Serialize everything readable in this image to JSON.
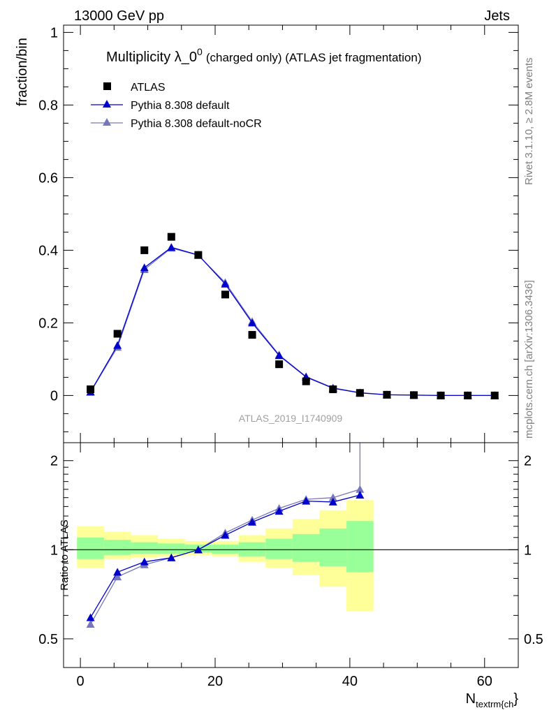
{
  "header": {
    "left": "13000 GeV pp",
    "right": "Jets"
  },
  "side_labels": {
    "rivet": "Rivet 3.1.10, ≥ 2.8M events",
    "mcplots": "mcplots.cern.ch [arXiv:1306.3436]"
  },
  "watermark": "ATLAS_2019_I1740909",
  "chart_data": [
    {
      "type": "scatter",
      "title_main": "Multiplicity λ_0",
      "title_sup": "0",
      "title_rest": "(charged only) (ATLAS jet fragmentation)",
      "ylabel": "fraction/bin",
      "xlim": [
        -2.5,
        65
      ],
      "ylim": [
        -0.13,
        1.02
      ],
      "yticks": [
        0,
        0.2,
        0.4,
        0.6,
        0.8,
        1
      ],
      "ytick_labels": [
        "0",
        "0.2",
        "0.4",
        "0.6",
        "0.8",
        "1"
      ],
      "x": [
        1.5,
        5.5,
        9.5,
        13.5,
        17.5,
        21.5,
        25.5,
        29.5,
        33.5,
        37.5,
        41.5,
        45.5,
        49.5,
        53.5,
        57.5,
        61.5
      ],
      "series": [
        {
          "name": "ATLAS",
          "marker": "square",
          "color": "#000000",
          "values": [
            0.017,
            0.17,
            0.4,
            0.437,
            0.387,
            0.278,
            0.167,
            0.086,
            0.039,
            0.017,
            0.007,
            0.002,
            0.001,
            0.0,
            0.0,
            0.0
          ]
        },
        {
          "name": "Pythia 8.308 default",
          "marker": "triangle",
          "color": "#0000cc",
          "values": [
            0.01,
            0.138,
            0.352,
            0.408,
            0.387,
            0.307,
            0.2,
            0.11,
            0.051,
            0.02,
            0.007,
            0.002,
            0.001,
            0.0,
            0.0,
            0.0
          ]
        },
        {
          "name": "Pythia 8.308 default-noCR",
          "marker": "triangle",
          "color": "#7777bb",
          "values": [
            0.009,
            0.133,
            0.347,
            0.406,
            0.386,
            0.311,
            0.204,
            0.112,
            0.052,
            0.021,
            0.008,
            0.002,
            0.001,
            0.0,
            0.0,
            0.0
          ]
        }
      ],
      "legend_position": "top-left"
    },
    {
      "type": "scatter",
      "ylabel": "Ratio to ATLAS",
      "xlabel_main": "N",
      "xlabel_sub": "textrm{ch",
      "xlabel_tail": "}",
      "xlim": [
        -2.5,
        65
      ],
      "ylim": [
        0.4,
        2.3
      ],
      "reference_line": 1,
      "xticks": [
        0,
        20,
        40,
        60
      ],
      "xtick_labels": [
        "0",
        "20",
        "40",
        "60"
      ],
      "yticks": [
        0.5,
        1,
        2
      ],
      "ytick_labels": [
        "0.5",
        "1",
        "2"
      ],
      "bands": {
        "x_edges": [
          [
            -0.5,
            3.5
          ],
          [
            3.5,
            7.5
          ],
          [
            7.5,
            11.5
          ],
          [
            11.5,
            15.5
          ],
          [
            15.5,
            19.5
          ],
          [
            19.5,
            23.5
          ],
          [
            23.5,
            27.5
          ],
          [
            27.5,
            31.5
          ],
          [
            31.5,
            35.5
          ],
          [
            35.5,
            39.5
          ],
          [
            39.5,
            43.5
          ]
        ],
        "outer_color": "#ffff99",
        "inner_color": "#99ff99",
        "outer_low": [
          0.87,
          0.93,
          0.94,
          0.95,
          0.96,
          0.95,
          0.91,
          0.87,
          0.82,
          0.75,
          0.62
        ],
        "outer_high": [
          1.2,
          1.15,
          1.12,
          1.09,
          1.07,
          1.07,
          1.12,
          1.18,
          1.27,
          1.36,
          1.47
        ],
        "inner_low": [
          0.93,
          0.96,
          0.97,
          0.97,
          0.98,
          0.97,
          0.95,
          0.93,
          0.91,
          0.88,
          0.84
        ],
        "inner_high": [
          1.1,
          1.08,
          1.06,
          1.05,
          1.04,
          1.04,
          1.06,
          1.09,
          1.13,
          1.18,
          1.25
        ]
      },
      "x": [
        1.5,
        5.5,
        9.5,
        13.5,
        17.5,
        21.5,
        25.5,
        29.5,
        33.5,
        37.5,
        41.5
      ],
      "series": [
        {
          "name": "Pythia 8.308 default",
          "color": "#0000cc",
          "values": [
            0.59,
            0.84,
            0.91,
            0.94,
            1.0,
            1.12,
            1.24,
            1.35,
            1.46,
            1.45,
            1.53
          ]
        },
        {
          "name": "Pythia 8.308 default-noCR",
          "color": "#7777bb",
          "values": [
            0.56,
            0.81,
            0.89,
            0.94,
            1.0,
            1.14,
            1.26,
            1.38,
            1.48,
            1.5,
            1.6
          ]
        }
      ]
    }
  ]
}
